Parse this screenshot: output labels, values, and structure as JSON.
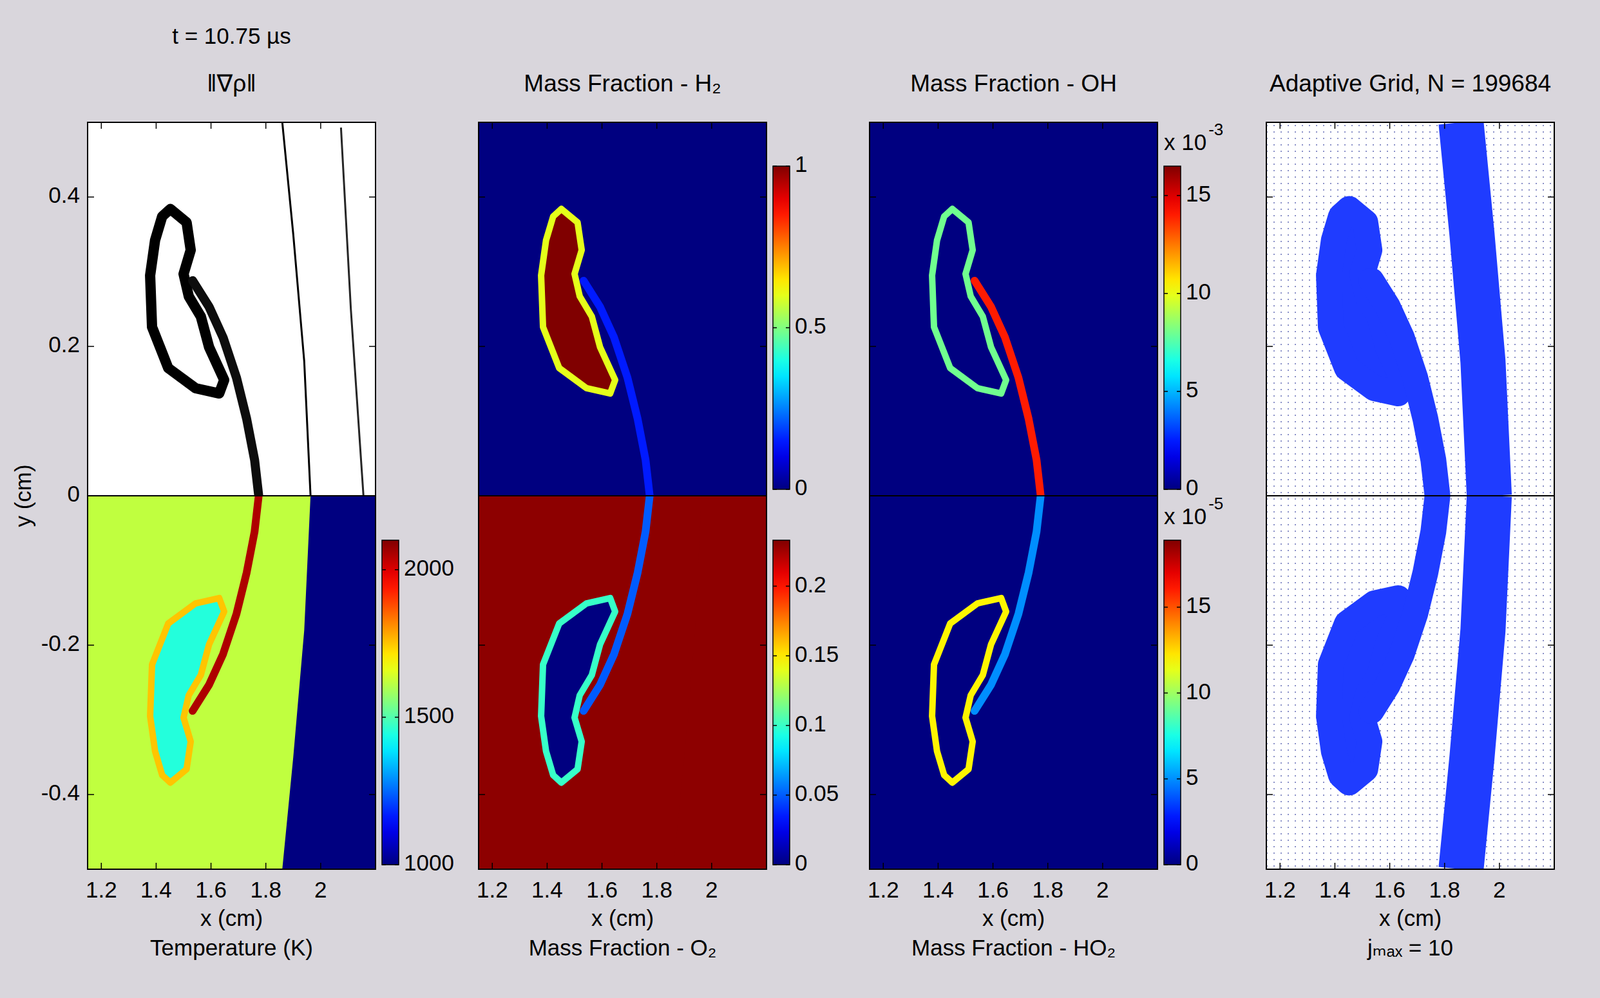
{
  "chart_data": {
    "type": "heatmap",
    "title": "t = 10.75 µs",
    "xlabel": "x (cm)",
    "ylabel": "y (cm)",
    "xlim": [
      1.15,
      2.2
    ],
    "ylim": [
      -0.5,
      0.5
    ],
    "xticks": [
      1.2,
      1.4,
      1.6,
      1.8,
      2
    ],
    "yticks": [
      -0.4,
      -0.2,
      0,
      0.2,
      0.4
    ],
    "geometry": {
      "bubble": [
        [
          1.452,
          0.384
        ],
        [
          1.511,
          0.366
        ],
        [
          1.526,
          0.329
        ],
        [
          1.5,
          0.297
        ],
        [
          1.519,
          0.267
        ],
        [
          1.563,
          0.24
        ],
        [
          1.593,
          0.199
        ],
        [
          1.648,
          0.155
        ],
        [
          1.63,
          0.137
        ],
        [
          1.544,
          0.144
        ],
        [
          1.444,
          0.171
        ],
        [
          1.385,
          0.226
        ],
        [
          1.378,
          0.295
        ],
        [
          1.396,
          0.342
        ],
        [
          1.422,
          0.374
        ]
      ],
      "stem": [
        [
          1.533,
          0.288
        ],
        [
          1.593,
          0.253
        ],
        [
          1.644,
          0.212
        ],
        [
          1.693,
          0.158
        ],
        [
          1.73,
          0.103
        ],
        [
          1.759,
          0.048
        ],
        [
          1.774,
          0
        ]
      ],
      "shock": [
        [
          1.86,
          0.5
        ],
        [
          1.9,
          0.35
        ],
        [
          1.94,
          0.18
        ],
        [
          1.963,
          0
        ]
      ],
      "wave": [
        [
          2.074,
          0.493
        ],
        [
          2.11,
          0.25
        ],
        [
          2.156,
          0
        ]
      ]
    },
    "panels": [
      {
        "title": "‖∇ρ‖",
        "caption": "Temperature (K)",
        "top": {
          "type": "gradient",
          "clim": [
            0,
            1
          ],
          "background": 0,
          "preshock": 0,
          "bubble": 0,
          "edge": 1,
          "stem": 0.95,
          "shock": 1,
          "wave": 0.85
        },
        "bottom": {
          "type": "heatmap",
          "clim": [
            1000,
            2100
          ],
          "cticks": [
            1000,
            1500,
            2000
          ],
          "background": 1620,
          "preshock": 1000,
          "bubble": 1450,
          "edge": 1750,
          "stem": 2050
        }
      },
      {
        "title": "Mass Fraction - H₂",
        "caption": "Mass Fraction - O₂",
        "top": {
          "type": "heatmap",
          "clim": [
            0,
            1
          ],
          "cticks": [
            0,
            0.5,
            1
          ],
          "background": 0,
          "preshock": 0,
          "bubble": 1,
          "edge": 0.6,
          "stem": 0.15
        },
        "bottom": {
          "type": "heatmap",
          "clim": [
            0,
            0.233
          ],
          "cticks": [
            0,
            0.05,
            0.1,
            0.15,
            0.2
          ],
          "background": 0.23,
          "preshock": 0.23,
          "bubble": 0,
          "edge": 0.1,
          "stem": 0.05
        }
      },
      {
        "title": "Mass Fraction - OH",
        "caption": "Mass Fraction - HO₂",
        "top": {
          "type": "heatmap",
          "clim": [
            0,
            16.5
          ],
          "cticks": [
            0,
            5,
            10,
            15
          ],
          "multiplier": "x 10",
          "exponent": "-3",
          "background": 0,
          "preshock": 0,
          "bubble": 0,
          "edge": 8,
          "stem": 14
        },
        "bottom": {
          "type": "heatmap",
          "clim": [
            0,
            18.9
          ],
          "cticks": [
            0,
            5,
            10,
            15
          ],
          "multiplier": "x 10",
          "exponent": "-5",
          "background": 0,
          "preshock": 0,
          "bubble": 0,
          "edge": 12,
          "stem": 5
        }
      },
      {
        "title": "Adaptive Grid, N = 199684",
        "caption": "jₘₐₓ = 10",
        "color": "#1f3cff",
        "top": {
          "type": "grid",
          "background": 0,
          "preshock": 0,
          "bubble": 1,
          "edge": 1,
          "stem": 1,
          "shock": 1
        },
        "bottom": {
          "type": "grid",
          "background": 0,
          "preshock": 0,
          "bubble": 1,
          "edge": 1,
          "stem": 1,
          "shock": 1
        }
      }
    ]
  }
}
